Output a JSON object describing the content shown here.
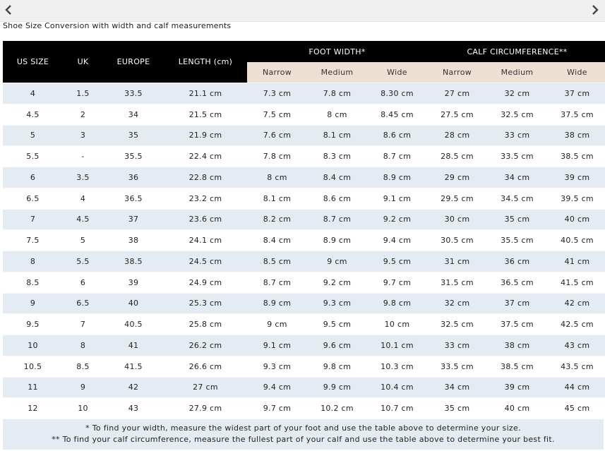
{
  "nav": {
    "prev_icon": "chevron-left-icon",
    "next_icon": "chevron-right-icon"
  },
  "caption": "Shoe Size Conversion with width and calf measurements",
  "headers": {
    "us_size": "US SIZE",
    "uk": "UK",
    "europe": "EUROPE",
    "length": "LENGTH (cm)",
    "foot_width": "FOOT WIDTH*",
    "calf_circumference": "CALF CIRCUMFERENCE**",
    "narrow": "Narrow",
    "medium": "Medium",
    "wide": "Wide"
  },
  "rows": [
    [
      "4",
      "1.5",
      "33.5",
      "21.1 cm",
      "7.3 cm",
      "7.8 cm",
      "8.30 cm",
      "27 cm",
      "32 cm",
      "37 cm"
    ],
    [
      "4.5",
      "2",
      "34",
      "21.5 cm",
      "7.5 cm",
      "8 cm",
      "8.45 cm",
      "27.5 cm",
      "32.5 cm",
      "37.5 cm"
    ],
    [
      "5",
      "3",
      "35",
      "21.9 cm",
      "7.6 cm",
      "8.1 cm",
      "8.6 cm",
      "28 cm",
      "33 cm",
      "38 cm"
    ],
    [
      "5.5",
      "-",
      "35.5",
      "22.4 cm",
      "7.8 cm",
      "8.3 cm",
      "8.7 cm",
      "28.5 cm",
      "33.5 cm",
      "38.5 cm"
    ],
    [
      "6",
      "3.5",
      "36",
      "22.8 cm",
      "8 cm",
      "8.4 cm",
      "8.9 cm",
      "29 cm",
      "34 cm",
      "39 cm"
    ],
    [
      "6.5",
      "4",
      "36.5",
      "23.2 cm",
      "8.1 cm",
      "8.6 cm",
      "9.1 cm",
      "29.5 cm",
      "34.5 cm",
      "39.5 cm"
    ],
    [
      "7",
      "4.5",
      "37",
      "23.6 cm",
      "8.2 cm",
      "8.7 cm",
      "9.2 cm",
      "30 cm",
      "35 cm",
      "40 cm"
    ],
    [
      "7.5",
      "5",
      "38",
      "24.1 cm",
      "8.4 cm",
      "8.9 cm",
      "9.4 cm",
      "30.5 cm",
      "35.5 cm",
      "40.5 cm"
    ],
    [
      "8",
      "5.5",
      "38.5",
      "24.5 cm",
      "8.5 cm",
      "9 cm",
      "9.5 cm",
      "31 cm",
      "36 cm",
      "41 cm"
    ],
    [
      "8.5",
      "6",
      "39",
      "24.9 cm",
      "8.7 cm",
      "9.2 cm",
      "9.7 cm",
      "31.5 cm",
      "36.5 cm",
      "41.5 cm"
    ],
    [
      "9",
      "6.5",
      "40",
      "25.3 cm",
      "8.9 cm",
      "9.3 cm",
      "9.8 cm",
      "32 cm",
      "37 cm",
      "42 cm"
    ],
    [
      "9.5",
      "7",
      "40.5",
      "25.8 cm",
      "9 cm",
      "9.5 cm",
      "10 cm",
      "32.5 cm",
      "37.5 cm",
      "42.5 cm"
    ],
    [
      "10",
      "8",
      "41",
      "26.2 cm",
      "9.1 cm",
      "9.6 cm",
      "10.1 cm",
      "33 cm",
      "38 cm",
      "43 cm"
    ],
    [
      "10.5",
      "8.5",
      "41.5",
      "26.6 cm",
      "9.3 cm",
      "9.8 cm",
      "10.3 cm",
      "33.5 cm",
      "38.5 cm",
      "43.5 cm"
    ],
    [
      "11",
      "9",
      "42",
      "27 cm",
      "9.4 cm",
      "9.9 cm",
      "10.4 cm",
      "34 cm",
      "39 cm",
      "44 cm"
    ],
    [
      "12",
      "10",
      "43",
      "27.9 cm",
      "9.7 cm",
      "10.2 cm",
      "10.7 cm",
      "35 cm",
      "40 cm",
      "45 cm"
    ]
  ],
  "notes": [
    "* To find your width, measure the widest part of your foot and use the table above to determine your size.",
    "** To find your calf circumference, measure the fullest part of your calf and use the table above to determine your best fit."
  ],
  "colors": {
    "header_bg": "#000000",
    "subheader_bg": "#eddfd2",
    "stripe_bg": "#e4ebf3",
    "nav_bg": "#f0f0f0"
  }
}
